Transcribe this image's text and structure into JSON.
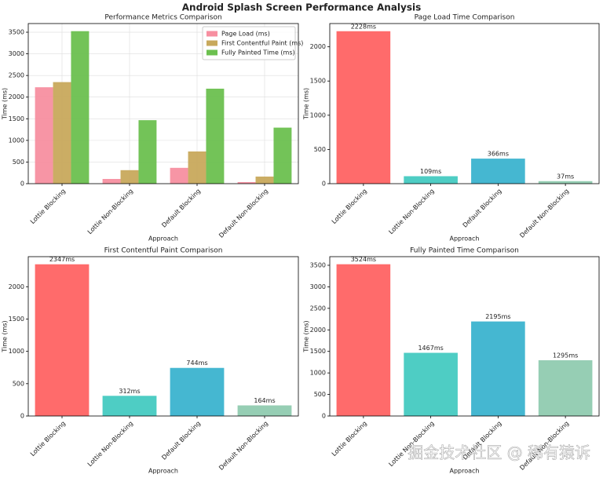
{
  "title": "Android Splash Screen Performance Analysis",
  "watermark": "掘金技术社区 @ 稀有猿诉",
  "chart_data": [
    {
      "type": "bar",
      "title": "Performance Metrics Comparison",
      "xlabel": "Approach",
      "ylabel": "Time (ms)",
      "categories": [
        "Lottie Blocking",
        "Lottie Non-Blocking",
        "Default Blocking",
        "Default Non-Blocking"
      ],
      "series": [
        {
          "name": "Page Load (ms)",
          "color": "#f78fa0",
          "values": [
            2228,
            109,
            366,
            37
          ]
        },
        {
          "name": "First Contentful Paint (ms)",
          "color": "#c8a95c",
          "values": [
            2347,
            312,
            744,
            164
          ]
        },
        {
          "name": "Fully Painted Time (ms)",
          "color": "#6cc04f",
          "values": [
            3524,
            1467,
            2195,
            1295
          ]
        }
      ],
      "ylim": [
        0,
        3700
      ],
      "yticks": [
        0,
        500,
        1000,
        1500,
        2000,
        2500,
        3000,
        3500
      ],
      "grid": true,
      "legend": "upper-right"
    },
    {
      "type": "bar",
      "title": "Page Load Time Comparison",
      "xlabel": "Approach",
      "ylabel": "Time (ms)",
      "categories": [
        "Lottie Blocking",
        "Lottie Non-Blocking",
        "Default Blocking",
        "Default Non-Blocking"
      ],
      "values": [
        2228,
        109,
        366,
        37
      ],
      "value_labels": [
        "2228ms",
        "109ms",
        "366ms",
        "37ms"
      ],
      "colors": [
        "#ff6b6b",
        "#4ecdc4",
        "#45b7d1",
        "#96ceb4"
      ],
      "ylim": [
        0,
        2340
      ],
      "yticks": [
        0,
        500,
        1000,
        1500,
        2000
      ],
      "grid": false
    },
    {
      "type": "bar",
      "title": "First Contentful Paint Comparison",
      "xlabel": "Approach",
      "ylabel": "Time (ms)",
      "categories": [
        "Lottie Blocking",
        "Lottie Non-Blocking",
        "Default Blocking",
        "Default Non-Blocking"
      ],
      "values": [
        2347,
        312,
        744,
        164
      ],
      "value_labels": [
        "2347ms",
        "312ms",
        "744ms",
        "164ms"
      ],
      "colors": [
        "#ff6b6b",
        "#4ecdc4",
        "#45b7d1",
        "#96ceb4"
      ],
      "ylim": [
        0,
        2465
      ],
      "yticks": [
        0,
        500,
        1000,
        1500,
        2000
      ],
      "grid": false
    },
    {
      "type": "bar",
      "title": "Fully Painted Time Comparison",
      "xlabel": "Approach",
      "ylabel": "Time (ms)",
      "categories": [
        "Lottie Blocking",
        "Lottie Non-Blocking",
        "Default Blocking",
        "Default Non-Blocking"
      ],
      "values": [
        3524,
        1467,
        2195,
        1295
      ],
      "value_labels": [
        "3524ms",
        "1467ms",
        "2195ms",
        "1295ms"
      ],
      "colors": [
        "#ff6b6b",
        "#4ecdc4",
        "#45b7d1",
        "#96ceb4"
      ],
      "ylim": [
        0,
        3700
      ],
      "yticks": [
        0,
        500,
        1000,
        1500,
        2000,
        2500,
        3000,
        3500
      ],
      "grid": false
    }
  ]
}
